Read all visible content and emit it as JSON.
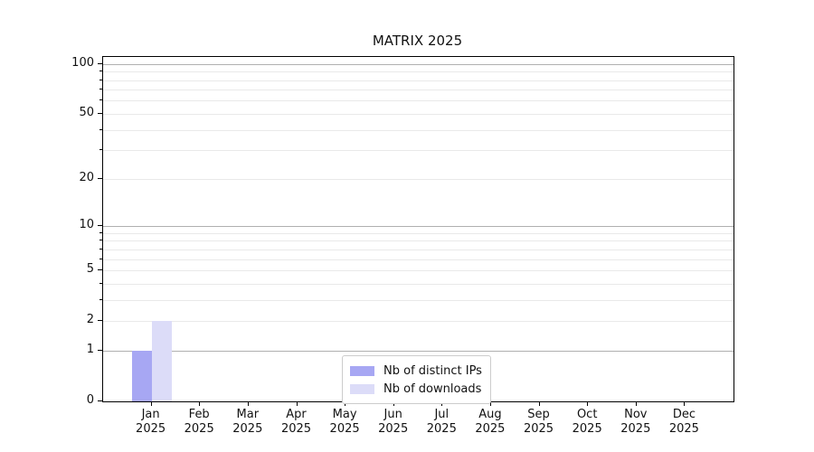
{
  "chart_data": {
    "type": "bar",
    "title": "MATRIX 2025",
    "categories": [
      "Jan",
      "Feb",
      "Mar",
      "Apr",
      "May",
      "Jun",
      "Jul",
      "Aug",
      "Sep",
      "Oct",
      "Nov",
      "Dec"
    ],
    "category_year": "2025",
    "series": [
      {
        "name": "Nb of distinct IPs",
        "color": "#a7a7f3",
        "values": [
          1,
          0,
          0,
          0,
          0,
          0,
          0,
          0,
          0,
          0,
          0,
          0
        ]
      },
      {
        "name": "Nb of downloads",
        "color": "#dcdcf8",
        "values": [
          2,
          0,
          0,
          0,
          0,
          0,
          0,
          0,
          0,
          0,
          0,
          0
        ]
      }
    ],
    "xlabel": "",
    "ylabel": "",
    "y_axis": {
      "scale": "log1p",
      "ticks": [
        0,
        1,
        2,
        5,
        10,
        20,
        50,
        100
      ],
      "minor_ticks": [
        3,
        4,
        6,
        7,
        8,
        9,
        30,
        40,
        60,
        70,
        80,
        90
      ],
      "major_gridline_values": [
        1,
        10,
        100
      ],
      "ylim": [
        0,
        110
      ]
    },
    "grid": true,
    "legend": {
      "position": "lower center"
    },
    "colors": {
      "major_grid": "#b0b0b0",
      "minor_grid": "#e9e9e9",
      "spine": "#000000",
      "text": "#111111",
      "legend_border": "#cccccc",
      "background": "#ffffff"
    }
  }
}
